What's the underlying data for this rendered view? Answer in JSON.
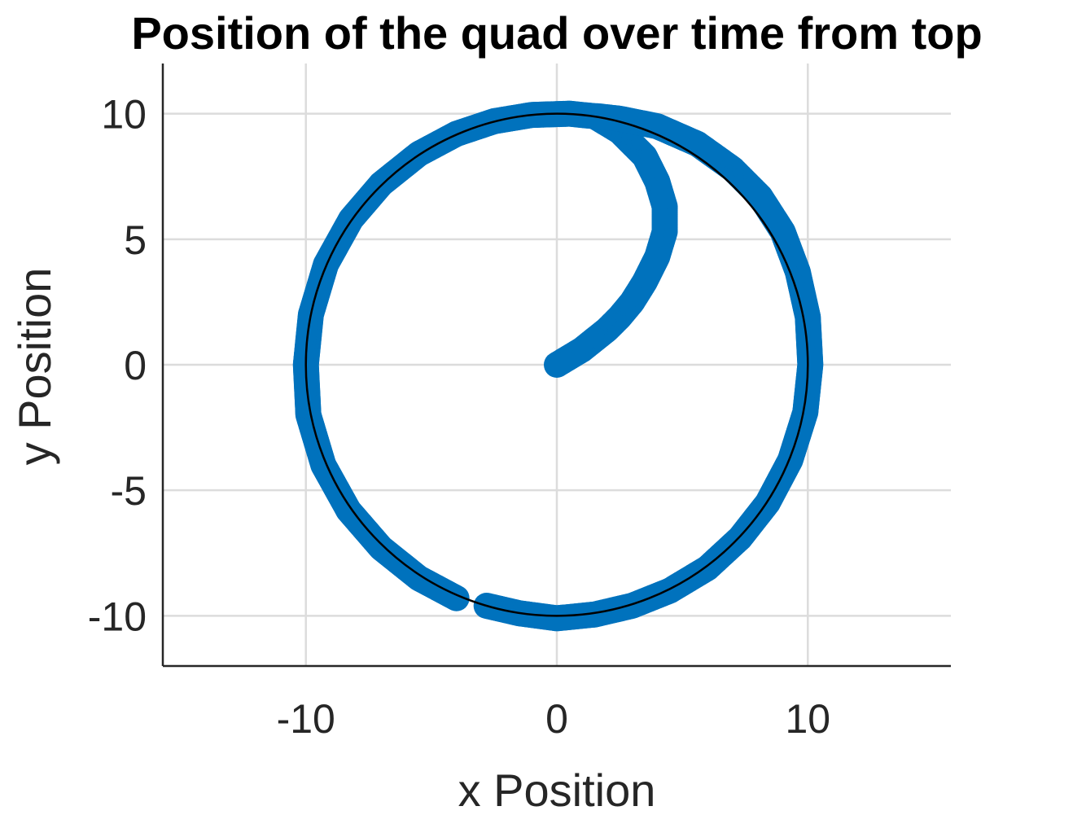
{
  "chart_data": {
    "type": "scatter",
    "title": "Position of the quad over time from top",
    "xlabel": "x Position",
    "ylabel": "y Position",
    "xlim": [
      -15.7,
      15.7
    ],
    "ylim": [
      -12,
      12
    ],
    "xticks": [
      -10,
      0,
      10
    ],
    "yticks": [
      -10,
      -5,
      0,
      5,
      10
    ],
    "xtick_labels": [
      "-10",
      "0",
      "10"
    ],
    "ytick_labels": [
      "-10",
      "-5",
      "0",
      "5",
      "10"
    ],
    "grid": true,
    "legend": "none",
    "series": [
      {
        "kind": "markers",
        "color": "#0072bd",
        "points": [
          [
            0,
            0
          ],
          [
            0.5,
            0.3
          ],
          [
            1.0,
            0.6
          ],
          [
            1.5,
            1.0
          ],
          [
            2.0,
            1.4
          ],
          [
            2.5,
            1.9
          ],
          [
            3.0,
            2.5
          ],
          [
            3.5,
            3.3
          ],
          [
            4.0,
            4.3
          ],
          [
            4.3,
            5.3
          ],
          [
            4.3,
            6.3
          ],
          [
            4.0,
            7.3
          ],
          [
            3.5,
            8.3
          ],
          [
            2.5,
            9.3
          ],
          [
            1.5,
            9.9
          ],
          [
            0.5,
            10.0
          ],
          [
            -1.0,
            9.95
          ],
          [
            -2.5,
            9.7
          ],
          [
            -4.0,
            9.2
          ],
          [
            -5.5,
            8.4
          ],
          [
            -7.0,
            7.2
          ],
          [
            -8.2,
            5.8
          ],
          [
            -9.2,
            4.0
          ],
          [
            -9.8,
            2.0
          ],
          [
            -10.0,
            0.0
          ],
          [
            -9.9,
            -2.0
          ],
          [
            -9.3,
            -4.0
          ],
          [
            -8.3,
            -5.8
          ],
          [
            -7.0,
            -7.3
          ],
          [
            -5.5,
            -8.5
          ],
          [
            -4.0,
            -9.3
          ],
          [
            -2.8,
            -9.6
          ],
          [
            -1.5,
            -9.9
          ],
          [
            0.0,
            -10.1
          ],
          [
            1.5,
            -9.95
          ],
          [
            3.0,
            -9.6
          ],
          [
            4.5,
            -9.0
          ],
          [
            6.0,
            -8.1
          ],
          [
            7.3,
            -6.9
          ],
          [
            8.4,
            -5.5
          ],
          [
            9.3,
            -3.8
          ],
          [
            9.9,
            -1.9
          ],
          [
            10.1,
            0.0
          ],
          [
            10.0,
            1.9
          ],
          [
            9.6,
            3.7
          ],
          [
            9.0,
            5.3
          ],
          [
            8.1,
            6.7
          ],
          [
            7.0,
            7.8
          ],
          [
            5.6,
            8.8
          ],
          [
            4.0,
            9.5
          ],
          [
            2.5,
            9.8
          ],
          [
            1.6,
            9.9
          ]
        ]
      },
      {
        "kind": "line",
        "color": "#000000",
        "shape": "circle",
        "center": [
          0,
          0
        ],
        "radius": 10
      }
    ]
  }
}
